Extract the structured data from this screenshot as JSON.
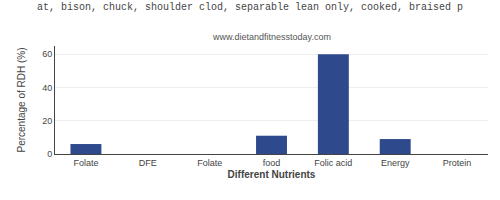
{
  "chart_data": {
    "type": "bar",
    "title": "at, bison, chuck, shoulder clod, separable lean only, cooked, braised p",
    "subtitle": "www.dietandfitnesstoday.com",
    "xlabel": "Different Nutrients",
    "ylabel": "Percentage of RDH (%)",
    "categories": [
      "Folate",
      "DFE",
      "Folate",
      "food",
      "Folic acid",
      "Energy",
      "Protein"
    ],
    "values": [
      6,
      0,
      0,
      11,
      60,
      9,
      0
    ],
    "color": "#2e4a8c",
    "ylim": [
      0,
      65
    ],
    "yticks": [
      0,
      20,
      40,
      60
    ],
    "grid": true
  }
}
